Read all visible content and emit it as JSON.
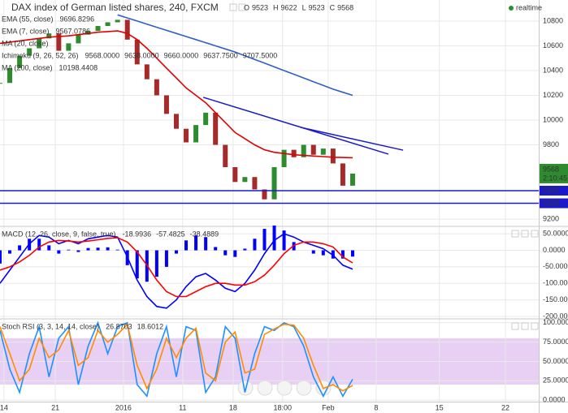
{
  "chart_data": [
    {
      "type": "candlestick",
      "title": "DAX index of German listed shares, 240, FXCM",
      "ohlc": [
        {
          "label": "O",
          "value": 9523
        },
        {
          "label": "H",
          "value": 9622
        },
        {
          "label": "L",
          "value": 9523
        },
        {
          "label": "C",
          "value": 9568
        }
      ],
      "status": "realtime",
      "x": [
        0,
        2,
        4,
        6,
        8,
        10,
        12,
        14,
        16,
        18,
        20,
        22,
        24,
        26,
        28,
        30,
        32,
        34,
        36,
        38,
        40,
        42,
        44,
        46,
        48,
        50,
        52,
        54,
        56,
        58,
        60,
        62,
        64,
        66,
        68,
        70,
        72
      ],
      "xlim": [
        0,
        110
      ],
      "ylim": [
        9148,
        10970
      ],
      "yticks": [
        9200,
        9800,
        10000,
        10200,
        10400,
        10600,
        10800
      ],
      "grid": true,
      "series": [
        {
          "style": "candle",
          "up_color": "#2e8b2e",
          "down_color": "#a52a2a",
          "values": [
            10300,
            10420,
            10520,
            10580,
            10660,
            10700,
            10560,
            10620,
            10690,
            10720,
            10760,
            10790,
            10810,
            10650,
            10450,
            10330,
            10200,
            10050,
            9930,
            9820,
            9960,
            10060,
            9800,
            9620,
            9500,
            9540,
            9440,
            9360,
            9620,
            9760,
            9700,
            9800,
            9720,
            9770,
            9650,
            9470,
            9568
          ]
        },
        {
          "style": "line",
          "color": "#e00000",
          "values": [
            10620,
            10630,
            10640,
            10650,
            10660,
            10670,
            10675,
            10680,
            10690,
            10700,
            10710,
            10715,
            10720,
            10700,
            10650,
            10580,
            10500,
            10420,
            10340,
            10260,
            10200,
            10140,
            10060,
            9980,
            9900,
            9850,
            9800,
            9760,
            9740,
            9730,
            9720,
            9715,
            9710,
            9705,
            9700,
            9698,
            9696
          ]
        },
        {
          "style": "line",
          "color": "#3060c0",
          "values": [
            null,
            null,
            null,
            null,
            null,
            null,
            null,
            null,
            null,
            null,
            null,
            null,
            10850,
            10825,
            10800,
            10775,
            10750,
            10725,
            10700,
            10675,
            10650,
            10625,
            10600,
            10575,
            10550,
            10520,
            10490,
            10460,
            10430,
            10400,
            10370,
            10340,
            10310,
            10280,
            10250,
            10225,
            10200
          ]
        }
      ],
      "trendlines": [
        {
          "color": "#1a1acc",
          "x": [
            41.5,
            79.3
          ],
          "values": [
            10184,
            9725
          ]
        },
        {
          "color": "#1a1acc",
          "x": [
            61.4,
            82.3
          ],
          "values": [
            9941,
            9757
          ]
        }
      ],
      "levels": [
        {
          "value": 9430,
          "color": "#1a1acc"
        },
        {
          "value": 9328,
          "color": "#1a1acc"
        }
      ],
      "last_price": {
        "value": 9568,
        "countdown": "2:10:45",
        "color": "#2e8b2e"
      },
      "legend": [
        {
          "name": "EMA (55, close)",
          "readouts": [
            {
              "text": "9696.8296",
              "color": "#e00000"
            }
          ]
        },
        {
          "name": "EMA (7, close)",
          "readouts": [
            {
              "text": "9567.0786",
              "color": "#2e8b2e"
            }
          ]
        },
        {
          "name": "MA (20, close)",
          "readouts": []
        },
        {
          "name": "Ichimoku (9, 26, 52, 26)",
          "readouts": [
            {
              "text": "9568.0000",
              "color": "#1a1acc"
            },
            {
              "text": "9638.0000",
              "color": "#a52a2a"
            },
            {
              "text": "9660.0000",
              "color": "#2e8b2e"
            },
            {
              "text": "9637.7500",
              "color": "#2e8b2e"
            },
            {
              "text": "9707.5000",
              "color": "#e00000"
            }
          ]
        },
        {
          "name": "MA (200, close)",
          "readouts": [
            {
              "text": "10198.4408",
              "color": "#3060c0"
            }
          ]
        }
      ]
    },
    {
      "type": "macd",
      "x": [
        0,
        2,
        4,
        6,
        8,
        10,
        12,
        14,
        16,
        18,
        20,
        22,
        24,
        26,
        28,
        30,
        32,
        34,
        36,
        38,
        40,
        42,
        44,
        46,
        48,
        50,
        52,
        54,
        56,
        58,
        60,
        62,
        64,
        66,
        68,
        70,
        72
      ],
      "xlim": [
        0,
        110
      ],
      "ylim": [
        -205,
        70
      ],
      "grid": true,
      "yticks": [
        {
          "value": 50,
          "label": "50.0000"
        },
        {
          "value": 0,
          "label": "0.0000"
        },
        {
          "value": -50,
          "label": "-50.0000"
        },
        {
          "value": -100,
          "label": "-100.0000"
        },
        {
          "value": -150,
          "label": "-150.0000"
        },
        {
          "value": -200,
          "label": "-200.0000"
        }
      ],
      "series": [
        {
          "style": "bar",
          "color": "#0000ff",
          "values": [
            -40,
            -10,
            15,
            35,
            35,
            15,
            -10,
            2,
            -5,
            7,
            8,
            9,
            2,
            -45,
            -85,
            -95,
            -80,
            -50,
            -10,
            30,
            45,
            40,
            10,
            -15,
            -20,
            5,
            35,
            65,
            75,
            60,
            25,
            0,
            -10,
            -15,
            -25,
            -25,
            -19
          ]
        },
        {
          "style": "line",
          "color": "#0000ff",
          "values": [
            -100,
            -60,
            -20,
            20,
            45,
            40,
            20,
            30,
            20,
            35,
            40,
            45,
            40,
            -20,
            -90,
            -140,
            -170,
            -175,
            -150,
            -110,
            -80,
            -70,
            -90,
            -115,
            -125,
            -100,
            -60,
            -10,
            30,
            50,
            40,
            25,
            15,
            5,
            -15,
            -45,
            -57
          ]
        },
        {
          "style": "line",
          "color": "#ff0000",
          "values": [
            -60,
            -50,
            -35,
            -15,
            10,
            25,
            30,
            28,
            25,
            28,
            32,
            36,
            38,
            25,
            -5,
            -45,
            -90,
            -125,
            -140,
            -140,
            -125,
            -110,
            -100,
            -100,
            -105,
            -105,
            -95,
            -75,
            -45,
            -10,
            15,
            25,
            25,
            20,
            10,
            -20,
            -38
          ]
        }
      ],
      "legend": [
        {
          "name": "MACD (12, 26, close, 9, false, true)",
          "readouts": [
            {
              "text": "-18.9936",
              "color": "#0000ff"
            },
            {
              "text": "-57.4825",
              "color": "#0000ff"
            },
            {
              "text": "-38.4889",
              "color": "#ff0000"
            }
          ]
        }
      ]
    },
    {
      "type": "line",
      "x": [
        0,
        2,
        4,
        6,
        8,
        10,
        12,
        14,
        16,
        18,
        20,
        22,
        24,
        26,
        28,
        30,
        32,
        34,
        36,
        38,
        40,
        42,
        44,
        46,
        48,
        50,
        52,
        54,
        56,
        58,
        60,
        62,
        64,
        66,
        68,
        70,
        72
      ],
      "xlim": [
        0,
        110
      ],
      "ylim": [
        -2,
        104
      ],
      "grid": true,
      "band": {
        "range": [
          20,
          80
        ],
        "color": "#e2c4f2"
      },
      "yticks": [
        {
          "value": 100,
          "label": "100.0000"
        },
        {
          "value": 75,
          "label": "75.0000"
        },
        {
          "value": 50,
          "label": "50.0000"
        },
        {
          "value": 25,
          "label": "25.0000"
        },
        {
          "value": 0,
          "label": "0.0000"
        }
      ],
      "xticks": [
        {
          "value": 0.8,
          "label": "14"
        },
        {
          "value": 11.3,
          "label": "21"
        },
        {
          "value": 25.2,
          "label": "2016"
        },
        {
          "value": 37.3,
          "label": "11"
        },
        {
          "value": 47.6,
          "label": "18"
        },
        {
          "value": 57.7,
          "label": "18:00"
        },
        {
          "value": 67,
          "label": "Feb"
        },
        {
          "value": 76.8,
          "label": "8"
        },
        {
          "value": 89.7,
          "label": "15"
        },
        {
          "value": 103.2,
          "label": "22"
        }
      ],
      "series": [
        {
          "style": "line",
          "color": "#1e90ff",
          "values": [
            90,
            40,
            10,
            60,
            95,
            30,
            80,
            95,
            20,
            70,
            100,
            60,
            95,
            100,
            20,
            5,
            60,
            95,
            30,
            95,
            90,
            10,
            30,
            95,
            80,
            10,
            60,
            95,
            90,
            100,
            95,
            70,
            30,
            5,
            30,
            5,
            27
          ]
        },
        {
          "style": "line",
          "color": "#ff8c00",
          "values": [
            95,
            60,
            25,
            40,
            80,
            55,
            65,
            90,
            45,
            55,
            90,
            75,
            85,
            98,
            45,
            15,
            40,
            80,
            55,
            80,
            93,
            35,
            25,
            75,
            88,
            35,
            40,
            85,
            92,
            98,
            97,
            80,
            45,
            15,
            20,
            12,
            19
          ]
        }
      ],
      "legend": [
        {
          "name": "Stoch RSI (3, 3, 14, 14, close)",
          "readouts": [
            {
              "text": "26.8703",
              "color": "#1e90ff"
            },
            {
              "text": "18.6012",
              "color": "#ff8c00"
            }
          ]
        }
      ]
    }
  ]
}
